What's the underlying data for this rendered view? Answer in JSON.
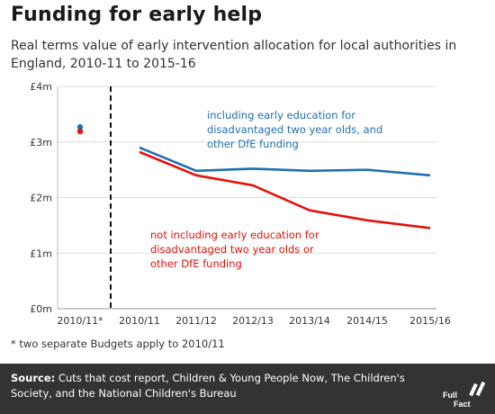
{
  "header": {
    "title": "Funding for early help",
    "subtitle": "Real terms value of early intervention allocation for local authorities in England, 2010-11 to 2015-16"
  },
  "chart_data": {
    "type": "line",
    "ylim": [
      0,
      4
    ],
    "yticks": [
      "£0m",
      "£1m",
      "£2m",
      "£3m",
      "£4m"
    ],
    "categories": [
      "2010/11*",
      "2010/11",
      "2011/12",
      "2012/13",
      "2013/14",
      "2014/15",
      "2015/16"
    ],
    "grid": true,
    "series": [
      {
        "name": "including early education for disadvantaged two year olds, and other DfE funding",
        "label_lines": [
          "including early education for",
          "disadvantaged two year olds, and",
          "other DfE funding"
        ],
        "color": "#1f6fb4",
        "point_2010_star": 3.27,
        "values": [
          null,
          2.9,
          2.48,
          2.52,
          2.48,
          2.5,
          2.4
        ]
      },
      {
        "name": "not including early education for disadvantaged two year olds or other DfE funding",
        "label_lines": [
          "not including early education for",
          "disadvantaged two year olds or",
          "other DfE funding"
        ],
        "color": "#e3120b",
        "point_2010_star": 3.19,
        "values": [
          null,
          2.82,
          2.4,
          2.22,
          1.77,
          1.59,
          1.45
        ]
      }
    ]
  },
  "footnote": "* two separate Budgets apply to 2010/11",
  "source": {
    "label": "Source:",
    "text": " Cuts that cost report, Children & Young People Now, The Children's Society, and the National Children's Bureau"
  },
  "logo": {
    "line1": "Full",
    "line2": "Fact"
  }
}
